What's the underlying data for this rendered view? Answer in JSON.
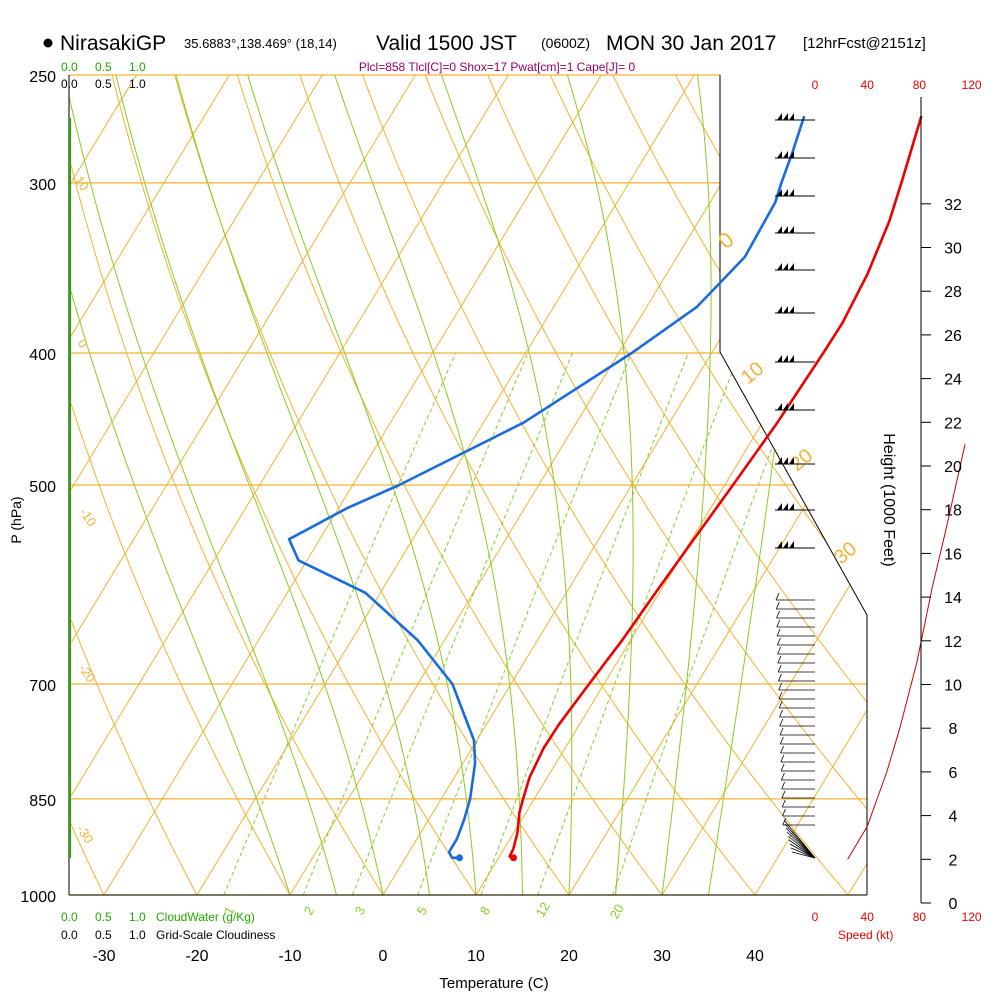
{
  "header": {
    "station": "NirasakiGP",
    "coords": "35.6883°,138.469° (18,14)",
    "valid_main": "Valid 1500 JST",
    "valid_z": "(0600Z)",
    "date": "MON 30 Jan 2017",
    "fcst": "[12hrFcst@2151z]",
    "indices": "Plcl=858 Tlcl[C]=0 Shox=17 Pwat[cm]=1 Cape[J]= 0"
  },
  "chart_data": {
    "type": "line",
    "diagram": "skew-T log-P",
    "xlabel": "Temperature (C)",
    "ylabel": "P (hPa)",
    "right_axis_label": "Height (1000 Feet)",
    "x_ticks": [
      -30,
      -20,
      -10,
      0,
      10,
      20,
      30,
      40
    ],
    "pressure_ticks": [
      250,
      300,
      400,
      500,
      700,
      850,
      1000
    ],
    "height_ticks": [
      0,
      2,
      4,
      6,
      8,
      10,
      12,
      14,
      16,
      18,
      20,
      22,
      24,
      26,
      28,
      30,
      32
    ],
    "isotherm_labels": [
      "10",
      "0",
      "-10",
      "-20",
      "-30"
    ],
    "dry_adiabat_labels": [
      "0",
      "10",
      "20",
      "30"
    ],
    "mixing_ratio_labels": [
      "1",
      "2",
      "3",
      "5",
      "8",
      "12",
      "20"
    ],
    "cloud_scale": {
      "cloudwater_ticks": [
        "0.0",
        "0.5",
        "1.0"
      ],
      "cloudwater_label": "CloudWater (g/Kg)",
      "cloudiness_ticks": [
        "0.0",
        "0.5",
        "1.0"
      ],
      "cloudiness_label": "Grid-Scale Cloudiness"
    },
    "speed_axis": {
      "ticks": [
        "0",
        "40",
        "80",
        "120"
      ],
      "label": "Speed (kt)"
    },
    "series": [
      {
        "name": "temperature",
        "color": "#ee0000",
        "points": [
          [
            11.6,
            939
          ],
          [
            11.1,
            937
          ],
          [
            11.0,
            925
          ],
          [
            10.4,
            900
          ],
          [
            9.3,
            870
          ],
          [
            8.8,
            850
          ],
          [
            8.1,
            820
          ],
          [
            7.7,
            780
          ],
          [
            7.8,
            750
          ],
          [
            8.4,
            700
          ],
          [
            9.1,
            650
          ],
          [
            9.6,
            600
          ],
          [
            10.2,
            550
          ],
          [
            10.9,
            500
          ],
          [
            11.6,
            450
          ],
          [
            12.0,
            400
          ],
          [
            12.1,
            380
          ],
          [
            11.6,
            350
          ],
          [
            10.5,
            320
          ],
          [
            9.3,
            300
          ],
          [
            8.3,
            285
          ],
          [
            7.1,
            268
          ]
        ]
      },
      {
        "name": "dewpoint",
        "color": "#1a6ae0",
        "points": [
          [
            5.8,
            939
          ],
          [
            5.0,
            939
          ],
          [
            4.3,
            930
          ],
          [
            4.3,
            910
          ],
          [
            3.8,
            880
          ],
          [
            3.1,
            850
          ],
          [
            1.3,
            800
          ],
          [
            -0.3,
            770
          ],
          [
            -2.8,
            740
          ],
          [
            -6.3,
            700
          ],
          [
            -12.9,
            650
          ],
          [
            -21.6,
            600
          ],
          [
            -30.9,
            568
          ],
          [
            -33.3,
            548
          ],
          [
            -29.1,
            520
          ],
          [
            -25.0,
            500
          ],
          [
            -15.7,
            450
          ],
          [
            -8.6,
            400
          ],
          [
            -4.6,
            370
          ],
          [
            -2.7,
            340
          ],
          [
            -3.0,
            310
          ],
          [
            -3.6,
            300
          ],
          [
            -4.4,
            285
          ],
          [
            -5.5,
            268
          ]
        ]
      }
    ],
    "wind_speed_profile_kt": [
      [
        25,
        2.0
      ],
      [
        40,
        3.5
      ],
      [
        55,
        6.0
      ],
      [
        65,
        8.0
      ],
      [
        78,
        11.0
      ],
      [
        90,
        14.5
      ],
      [
        100,
        17.0
      ],
      [
        115,
        21.0
      ]
    ]
  }
}
